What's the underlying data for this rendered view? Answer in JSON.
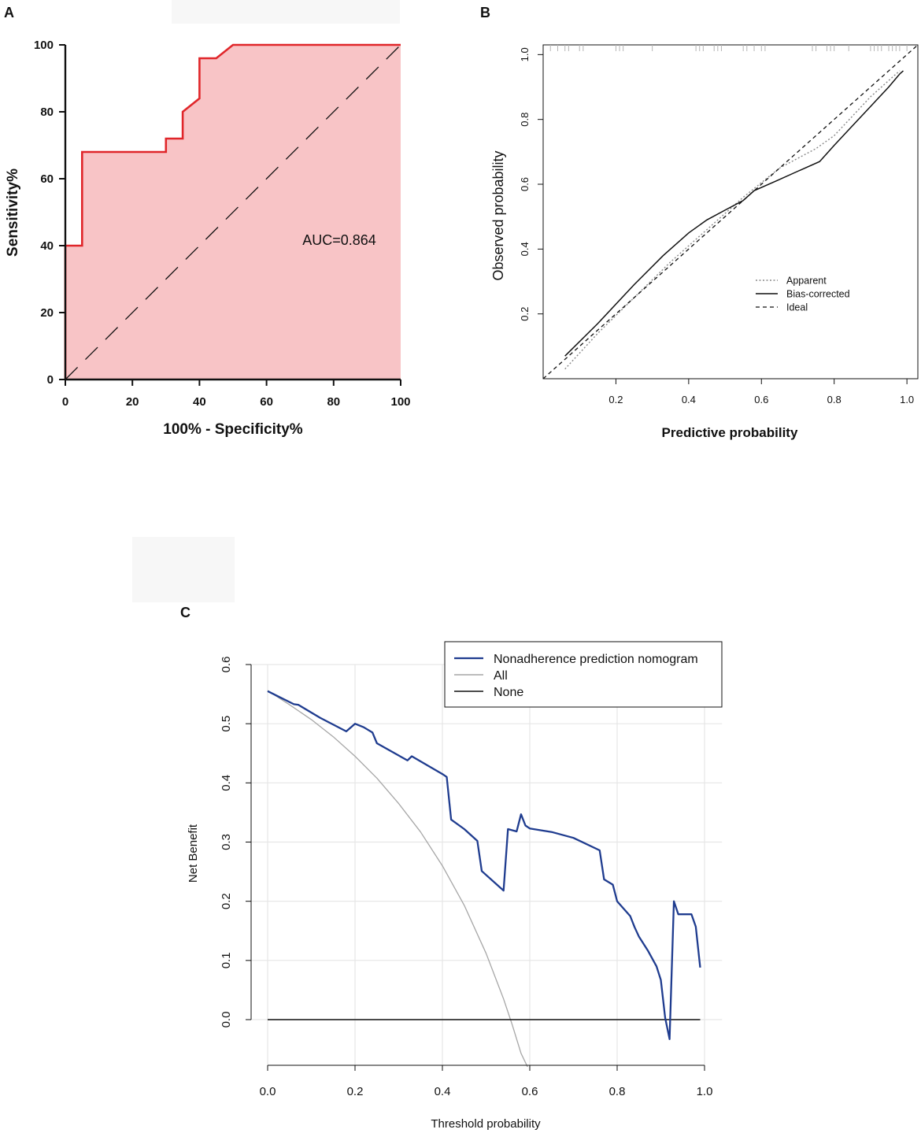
{
  "chart_data": [
    {
      "panel": "A",
      "type": "line",
      "title": "",
      "xlabel": "100% - Specificity%",
      "ylabel": "Sensitivity%",
      "xlim": [
        0,
        100
      ],
      "ylim": [
        0,
        100
      ],
      "xticks": [
        "0",
        "20",
        "40",
        "60",
        "80",
        "100"
      ],
      "yticks": [
        "0",
        "20",
        "40",
        "60",
        "80",
        "100"
      ],
      "annotation": "AUC=0.864",
      "colors": {
        "roc": "#e0262a",
        "fill": "#f8c4c6",
        "reference": "#111111"
      },
      "series": [
        {
          "name": "ROC",
          "style": "solid",
          "x": [
            0,
            0,
            5,
            5,
            30,
            30,
            35,
            35,
            40,
            40,
            45,
            50,
            100
          ],
          "y": [
            0,
            40,
            40,
            68,
            68,
            72,
            72,
            80,
            84,
            96,
            96,
            100,
            100
          ]
        },
        {
          "name": "Reference",
          "style": "longdash",
          "x": [
            0,
            100
          ],
          "y": [
            0,
            100
          ]
        }
      ]
    },
    {
      "panel": "B",
      "type": "line",
      "xlabel": "Predictive probability",
      "ylabel": "Observed probability",
      "xlim": [
        0.0,
        1.03
      ],
      "ylim": [
        0.0,
        1.03
      ],
      "xticks": [
        "0.2",
        "0.4",
        "0.6",
        "0.8",
        "1.0"
      ],
      "yticks": [
        "0.2",
        "0.4",
        "0.6",
        "0.8",
        "1.0"
      ],
      "legend_position": "lower-right",
      "rug": [
        0.02,
        0.04,
        0.06,
        0.07,
        0.1,
        0.11,
        0.2,
        0.21,
        0.22,
        0.3,
        0.42,
        0.43,
        0.44,
        0.47,
        0.48,
        0.49,
        0.55,
        0.56,
        0.58,
        0.6,
        0.61,
        0.74,
        0.75,
        0.78,
        0.79,
        0.8,
        0.84,
        0.9,
        0.91,
        0.92,
        0.93,
        0.95,
        0.96,
        0.97,
        0.98,
        1.0
      ],
      "series": [
        {
          "name": "Apparent",
          "style": "dotted",
          "x": [
            0.06,
            0.15,
            0.25,
            0.35,
            0.45,
            0.55,
            0.65,
            0.75,
            0.8,
            0.9,
            0.98
          ],
          "y": [
            0.03,
            0.14,
            0.25,
            0.36,
            0.46,
            0.56,
            0.65,
            0.71,
            0.75,
            0.87,
            0.95
          ]
        },
        {
          "name": "Bias-corrected",
          "style": "solid",
          "x": [
            0.06,
            0.15,
            0.25,
            0.33,
            0.4,
            0.45,
            0.5,
            0.55,
            0.58,
            0.64,
            0.7,
            0.76,
            0.8,
            0.85,
            0.9,
            0.95,
            0.98,
            0.99
          ],
          "y": [
            0.07,
            0.17,
            0.29,
            0.38,
            0.45,
            0.49,
            0.52,
            0.55,
            0.58,
            0.61,
            0.64,
            0.67,
            0.72,
            0.78,
            0.84,
            0.9,
            0.94,
            0.95
          ]
        },
        {
          "name": "Ideal",
          "style": "dashed",
          "x": [
            0.0,
            1.03
          ],
          "y": [
            0.0,
            1.03
          ]
        }
      ]
    },
    {
      "panel": "C",
      "type": "line",
      "xlabel": "Threshold probability",
      "ylabel": "Net Benefit",
      "xlim": [
        -0.05,
        1.04
      ],
      "ylim": [
        -0.08,
        0.6
      ],
      "xticks": [
        "0.0",
        "0.2",
        "0.4",
        "0.6",
        "0.8",
        "1.0"
      ],
      "yticks": [
        "0.0",
        "0.1",
        "0.2",
        "0.3",
        "0.4",
        "0.5",
        "0.6"
      ],
      "legend_position": "top-right",
      "colors": {
        "model": "#1f3c8f",
        "all": "#a6a6a6",
        "none": "#111111",
        "grid": "#e6e6e6"
      },
      "series": [
        {
          "name": "Nonadherence prediction nomogram",
          "x": [
            0.0,
            0.06,
            0.07,
            0.12,
            0.18,
            0.2,
            0.22,
            0.24,
            0.25,
            0.32,
            0.33,
            0.4,
            0.41,
            0.42,
            0.45,
            0.48,
            0.49,
            0.54,
            0.55,
            0.57,
            0.58,
            0.59,
            0.6,
            0.65,
            0.7,
            0.76,
            0.77,
            0.79,
            0.8,
            0.83,
            0.84,
            0.85,
            0.87,
            0.89,
            0.9,
            0.91,
            0.92,
            0.93,
            0.94,
            0.97,
            0.98,
            0.99
          ],
          "y": [
            0.555,
            0.533,
            0.532,
            0.51,
            0.487,
            0.5,
            0.494,
            0.485,
            0.467,
            0.438,
            0.445,
            0.415,
            0.41,
            0.338,
            0.322,
            0.302,
            0.251,
            0.218,
            0.322,
            0.318,
            0.347,
            0.328,
            0.323,
            0.317,
            0.307,
            0.286,
            0.237,
            0.228,
            0.2,
            0.175,
            0.156,
            0.14,
            0.117,
            0.09,
            0.067,
            0.003,
            -0.033,
            0.2,
            0.178,
            0.178,
            0.157,
            0.088
          ]
        },
        {
          "name": "All",
          "x": [
            0.0,
            0.05,
            0.1,
            0.15,
            0.2,
            0.25,
            0.3,
            0.35,
            0.4,
            0.45,
            0.5,
            0.54,
            0.56,
            0.58,
            0.595
          ],
          "y": [
            0.556,
            0.532,
            0.507,
            0.478,
            0.445,
            0.408,
            0.365,
            0.317,
            0.26,
            0.193,
            0.112,
            0.035,
            -0.009,
            -0.057,
            -0.08
          ]
        },
        {
          "name": "None",
          "x": [
            0.0,
            0.99
          ],
          "y": [
            0.0,
            0.0
          ]
        }
      ]
    }
  ],
  "panel_labels": [
    "A",
    "B",
    "C"
  ]
}
